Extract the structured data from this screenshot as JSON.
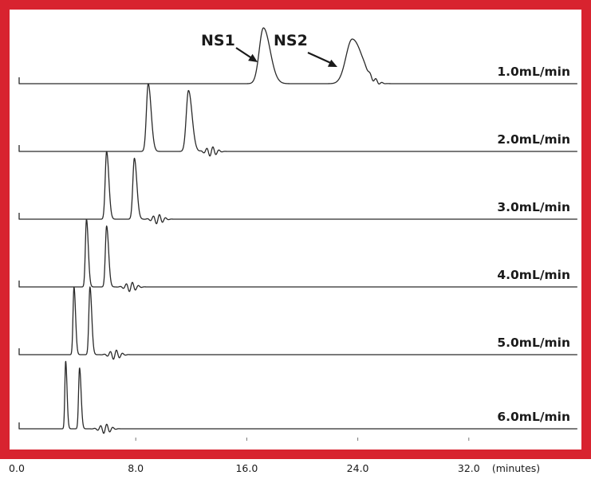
{
  "colors": {
    "frame": "#d8232f",
    "panel": "#ffffff",
    "trace": "#2a2a2a"
  },
  "chart_data": {
    "type": "line",
    "title": "",
    "xlabel": "(minutes)",
    "ylabel": "",
    "xlim": [
      0,
      40
    ],
    "x_ticks": [
      "0.0",
      "8.0",
      "16.0",
      "24.0",
      "32.0"
    ],
    "x_unit_label": "(minutes)",
    "grid": false,
    "legend": "none",
    "annotations": [
      {
        "text": "NS1",
        "series": "1.0mL/min",
        "peak": 1
      },
      {
        "text": "NS2",
        "series": "1.0mL/min",
        "peak": 2
      }
    ],
    "series": [
      {
        "name": "1.0mL/min",
        "peaks": [
          {
            "rt": 17.2,
            "height": 1.0,
            "width": 0.3
          },
          {
            "rt": 23.6,
            "height": 0.8,
            "width": 0.45
          }
        ],
        "end": 40
      },
      {
        "name": "2.0mL/min",
        "peaks": [
          {
            "rt": 8.9,
            "height": 1.0,
            "width": 0.13
          },
          {
            "rt": 11.8,
            "height": 0.9,
            "width": 0.16
          }
        ],
        "end": 40
      },
      {
        "name": "3.0mL/min",
        "peaks": [
          {
            "rt": 5.9,
            "height": 1.0,
            "width": 0.1
          },
          {
            "rt": 7.9,
            "height": 0.9,
            "width": 0.11
          }
        ],
        "end": 40
      },
      {
        "name": "4.0mL/min",
        "peaks": [
          {
            "rt": 4.45,
            "height": 1.0,
            "width": 0.08
          },
          {
            "rt": 5.9,
            "height": 0.9,
            "width": 0.09
          }
        ],
        "end": 40
      },
      {
        "name": "5.0mL/min",
        "peaks": [
          {
            "rt": 3.55,
            "height": 1.0,
            "width": 0.07
          },
          {
            "rt": 4.7,
            "height": 1.0,
            "width": 0.08
          }
        ],
        "end": 40
      },
      {
        "name": "6.0mL/min",
        "peaks": [
          {
            "rt": 2.95,
            "height": 1.0,
            "width": 0.06
          },
          {
            "rt": 3.95,
            "height": 0.9,
            "width": 0.07
          }
        ],
        "end": 40
      }
    ]
  }
}
